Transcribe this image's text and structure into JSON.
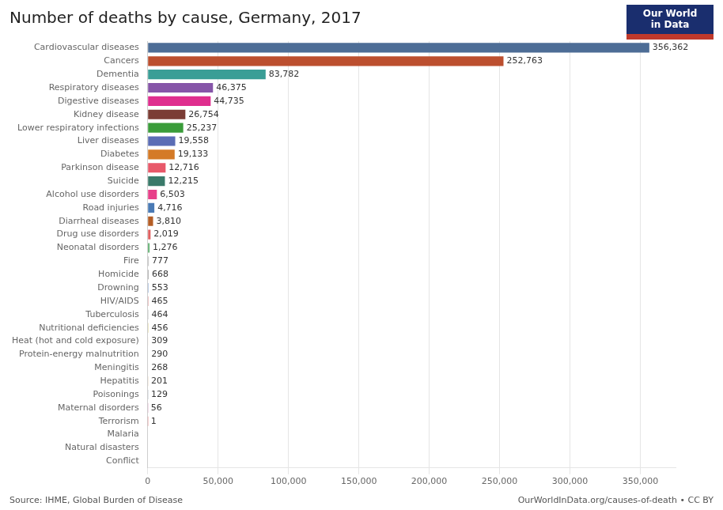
{
  "chart_data": {
    "type": "bar",
    "orientation": "horizontal",
    "title": "Number of deaths by cause, Germany, 2017",
    "annotations": [
      "Source: IHME, Global Burden of Disease",
      "OurWorldInData.org/causes-of-death • CC BY",
      "Our World",
      "in Data"
    ],
    "categories": [
      "Cardiovascular diseases",
      "Cancers",
      "Dementia",
      "Respiratory diseases",
      "Digestive diseases",
      "Kidney disease",
      "Lower respiratory infections",
      "Liver diseases",
      "Diabetes",
      "Parkinson disease",
      "Suicide",
      "Alcohol use disorders",
      "Road injuries",
      "Diarrheal diseases",
      "Drug use disorders",
      "Neonatal disorders",
      "Fire",
      "Homicide",
      "Drowning",
      "HIV/AIDS",
      "Tuberculosis",
      "Nutritional deficiencies",
      "Heat (hot and cold exposure)",
      "Protein-energy malnutrition",
      "Meningitis",
      "Hepatitis",
      "Poisonings",
      "Maternal disorders",
      "Terrorism",
      "Malaria",
      "Natural disasters",
      "Conflict"
    ],
    "values": [
      356362,
      252763,
      83782,
      46375,
      44735,
      26754,
      25237,
      19558,
      19133,
      12716,
      12215,
      6503,
      4716,
      3810,
      2019,
      1276,
      777,
      668,
      553,
      465,
      464,
      456,
      309,
      290,
      268,
      201,
      129,
      56,
      1,
      0,
      0,
      0
    ],
    "value_labels": [
      "356,362",
      "252,763",
      "83,782",
      "46,375",
      "44,735",
      "26,754",
      "25,237",
      "19,558",
      "19,133",
      "12,716",
      "12,215",
      "6,503",
      "4,716",
      "3,810",
      "2,019",
      "1,276",
      "777",
      "668",
      "553",
      "465",
      "464",
      "456",
      "309",
      "290",
      "268",
      "201",
      "129",
      "56",
      "1",
      null,
      null,
      null
    ],
    "data_labels": true,
    "colors": [
      "#4d6d96",
      "#bc4f2f",
      "#3a9e96",
      "#8655a8",
      "#df2e8e",
      "#7b3d35",
      "#3a9c3a",
      "#5b6db5",
      "#d47a27",
      "#e8596a",
      "#3a7a6a",
      "#e8408a",
      "#4a7ab5",
      "#b55e26",
      "#e06060",
      "#5aad6a",
      "#bbbbbb",
      "#999999",
      "#7799cc",
      "#cc5555",
      "#aaaaaa",
      "#ccbb55",
      "#dd9944",
      "#99bb66",
      "#bb8877",
      "#cc9955",
      "#8899aa",
      "#cc77aa",
      "#dd4444",
      "#999999",
      "#bbbbbb",
      "#aaaaaa"
    ],
    "xlim": [
      0,
      375000
    ],
    "xticks": [
      0,
      {
        "value": 50000,
        "label": "50,000"
      },
      {
        "value": 100000,
        "label": "100,000"
      },
      {
        "value": 150000,
        "label": "150,000"
      },
      {
        "value": 200000,
        "label": "200,000"
      },
      {
        "value": 250000,
        "label": "250,000"
      },
      {
        "value": 300000,
        "label": "300,000"
      },
      {
        "value": 350000,
        "label": "350,000"
      }
    ],
    "grid": true
  }
}
